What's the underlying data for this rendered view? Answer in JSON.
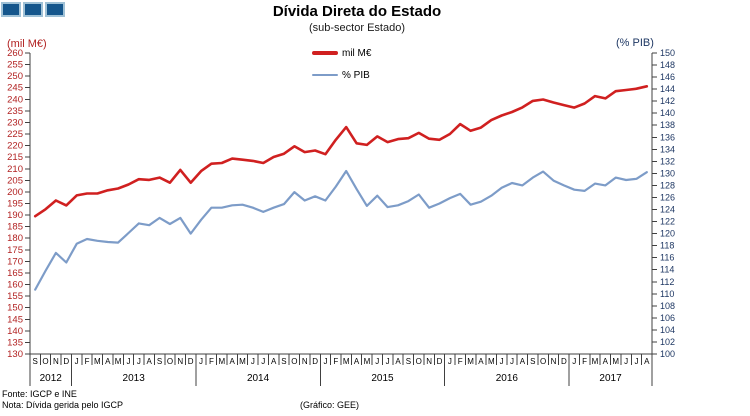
{
  "logo": {
    "square_count": 3,
    "fill": "#15568c",
    "border": "#9fc1d6"
  },
  "footer": {
    "source": "Fonte: IGCP e INE",
    "note": "Nota: Dívida gerida pelo IGCP",
    "credit": "(Gráfico: GEE)"
  },
  "chart_data": {
    "type": "line",
    "title": "Dívida Direta do Estado",
    "subtitle": "(sub-sector Estado)",
    "grid": false,
    "legend_position": "top-center",
    "x_months": [
      "S",
      "O",
      "N",
      "D",
      "J",
      "F",
      "M",
      "A",
      "M",
      "J",
      "J",
      "A",
      "S",
      "O",
      "N",
      "D",
      "J",
      "F",
      "M",
      "A",
      "M",
      "J",
      "J",
      "A",
      "S",
      "O",
      "N",
      "D",
      "J",
      "F",
      "M",
      "A",
      "M",
      "J",
      "J",
      "A",
      "S",
      "O",
      "N",
      "D",
      "J",
      "F",
      "M",
      "A",
      "M",
      "J",
      "J",
      "A",
      "S",
      "O",
      "N",
      "D",
      "J",
      "F",
      "M",
      "A",
      "M",
      "J",
      "J",
      "A"
    ],
    "years": [
      {
        "label": "2012",
        "months": 4
      },
      {
        "label": "2013",
        "months": 12
      },
      {
        "label": "2014",
        "months": 12
      },
      {
        "label": "2015",
        "months": 12
      },
      {
        "label": "2016",
        "months": 12
      },
      {
        "label": "2017",
        "months": 8
      }
    ],
    "left_axis": {
      "label": "(mil M€)",
      "min": 130,
      "max": 260,
      "step": 5,
      "tick_color": "#b22222"
    },
    "right_axis": {
      "label": "(% PIB)",
      "min": 100,
      "max": 150,
      "step": 2,
      "tick_color": "#1f3864"
    },
    "series": [
      {
        "name": "mil M€",
        "axis": "left",
        "color": "#d02020",
        "stroke_width": 2.6,
        "values": [
          189.5,
          192.5,
          196.3,
          194.2,
          198.5,
          199.3,
          199.3,
          200.7,
          201.5,
          203.2,
          205.5,
          205.2,
          206.2,
          204.0,
          209.5,
          204.0,
          209.0,
          212.2,
          212.5,
          214.4,
          213.9,
          213.4,
          212.5,
          215.1,
          216.5,
          219.7,
          217.2,
          217.9,
          216.3,
          222.5,
          228.0,
          221.0,
          220.3,
          224.0,
          221.5,
          222.8,
          223.2,
          225.5,
          223.0,
          222.5,
          225.0,
          229.3,
          226.4,
          227.8,
          231.0,
          233.0,
          234.5,
          236.5,
          239.3,
          239.9,
          238.6,
          237.5,
          236.4,
          238.2,
          241.4,
          240.4,
          243.5,
          244.0,
          244.6,
          245.6
        ]
      },
      {
        "name": "% PIB",
        "axis": "right",
        "color": "#7d9cc8",
        "stroke_width": 2.2,
        "values": [
          110.7,
          113.8,
          116.8,
          115.2,
          118.3,
          119.1,
          118.8,
          118.6,
          118.5,
          120.1,
          121.7,
          121.4,
          122.6,
          121.6,
          122.6,
          120.0,
          122.3,
          124.3,
          124.3,
          124.7,
          124.8,
          124.3,
          123.6,
          124.3,
          124.9,
          126.9,
          125.5,
          126.2,
          125.5,
          127.8,
          130.4,
          127.4,
          124.6,
          126.3,
          124.4,
          124.7,
          125.4,
          126.5,
          124.3,
          125.0,
          125.9,
          126.6,
          124.8,
          125.3,
          126.3,
          127.6,
          128.4,
          128.0,
          129.3,
          130.3,
          128.8,
          128.0,
          127.3,
          127.1,
          128.3,
          128.0,
          129.3,
          128.9,
          129.1,
          130.2
        ]
      }
    ]
  }
}
